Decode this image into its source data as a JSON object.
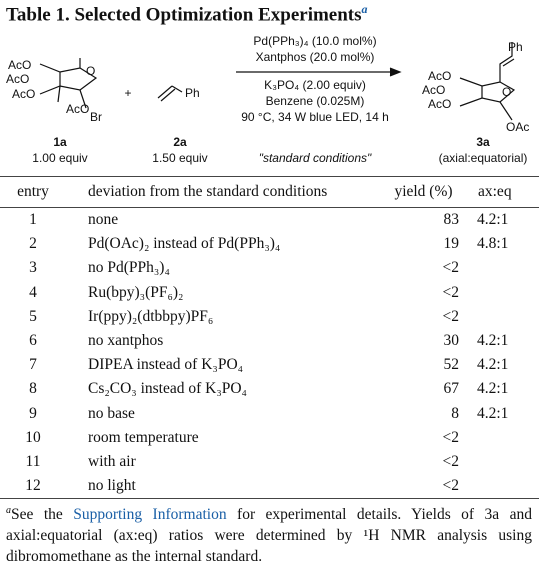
{
  "title": {
    "text": "Table 1. Selected Optimization Experiments",
    "mark": "a"
  },
  "scheme": {
    "reactant1": {
      "acetates": [
        "AcO",
        "AcO",
        "AcO",
        "AcO"
      ],
      "ring_oxygen": "O",
      "leaving_group": "Br",
      "id": "1a",
      "amount": "1.00 equiv"
    },
    "plus": "+",
    "reactant2": {
      "substituent": "Ph",
      "id": "2a",
      "amount": "1.50 equiv"
    },
    "conditions_above": [
      "Pd(PPh₃)₄ (10.0 mol%)",
      "Xantphos (20.0 mol%)"
    ],
    "conditions_below": [
      "K₃PO₄ (2.00 equiv)",
      "Benzene (0.025M)",
      "90 °C, 34 W blue LED, 14 h"
    ],
    "conditions_note": "\"standard conditions\"",
    "product": {
      "substituent": "Ph",
      "acetates": [
        "AcO",
        "AcO",
        "AcO"
      ],
      "ring_oxygen": "O",
      "axial_group": "OAc",
      "id": "3a",
      "note": "(axial:equatorial)"
    }
  },
  "table": {
    "headers": [
      "entry",
      "deviation from the standard conditions",
      "yield (%)",
      "ax:eq"
    ],
    "rows": [
      [
        1,
        "none",
        83,
        "4.2:1"
      ],
      [
        2,
        "Pd(OAc)₂ instead of Pd(PPh₃)₄",
        19,
        "4.8:1"
      ],
      [
        3,
        "no Pd(PPh₃)₄",
        "<2",
        null
      ],
      [
        4,
        "Ru(bpy)₃(PF₆)₂",
        "<2",
        null
      ],
      [
        5,
        "Ir(ppy)₂(dtbbpy)PF₆",
        "<2",
        null
      ],
      [
        6,
        "no xantphos",
        30,
        "4.2:1"
      ],
      [
        7,
        "DIPEA instead of K₃PO₄",
        52,
        "4.2:1"
      ],
      [
        8,
        "Cs₂CO₃ instead of K₃PO₄",
        67,
        "4.2:1"
      ],
      [
        9,
        "no base",
        8,
        "4.2:1"
      ],
      [
        10,
        "room temperature",
        "<2",
        null
      ],
      [
        11,
        "with air",
        "<2",
        null
      ],
      [
        12,
        "no light",
        "<2",
        null
      ]
    ]
  },
  "footnote": {
    "mark": "a",
    "before_link": "See the ",
    "link": "Supporting Information",
    "after_link": " for experimental details. Yields of 3a and axial:equatorial (ax:eq) ratios were determined by ¹H NMR analysis using dibromomethane as the internal standard."
  }
}
